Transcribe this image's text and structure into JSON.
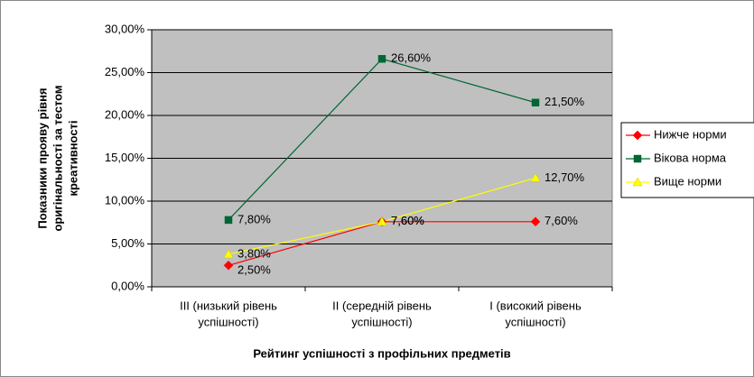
{
  "chart_data": {
    "type": "line",
    "ylabel": [
      "Показники прояву рівня",
      "оригінальності за тестом",
      "креативності"
    ],
    "xlabel": "Рейтинг успішності з профільних предметів",
    "categories": [
      [
        "III (низький рівень",
        "успішності)"
      ],
      [
        "II (середній рівень",
        "успішності)"
      ],
      [
        "I (високий рівень",
        "успішності)"
      ]
    ],
    "series": [
      {
        "name": "Нижче норми",
        "color": "#ff0000",
        "marker": "diamond",
        "values": [
          2.5,
          7.6,
          7.6
        ],
        "value_labels": [
          "2,50%",
          "7,60%",
          "7,60%"
        ]
      },
      {
        "name": "Вікова норма",
        "color": "#006633",
        "marker": "square",
        "values": [
          7.8,
          26.6,
          21.5
        ],
        "value_labels": [
          "7,80%",
          "26,60%",
          "21,50%"
        ]
      },
      {
        "name": "Вище норми",
        "color": "#ffff00",
        "marker": "triangle",
        "values": [
          3.8,
          7.6,
          12.7
        ],
        "value_labels": [
          "3,80%",
          "7,60%",
          "12,70%"
        ]
      }
    ],
    "ylim": [
      0,
      30
    ],
    "yticks": [
      {
        "value": 0,
        "label": "0,00%"
      },
      {
        "value": 5,
        "label": "5,00%"
      },
      {
        "value": 10,
        "label": "10,00%"
      },
      {
        "value": 15,
        "label": "15,00%"
      },
      {
        "value": 20,
        "label": "20,00%"
      },
      {
        "value": 25,
        "label": "25,00%"
      },
      {
        "value": 30,
        "label": "30,00%"
      }
    ],
    "grid": true,
    "legend": "right"
  }
}
